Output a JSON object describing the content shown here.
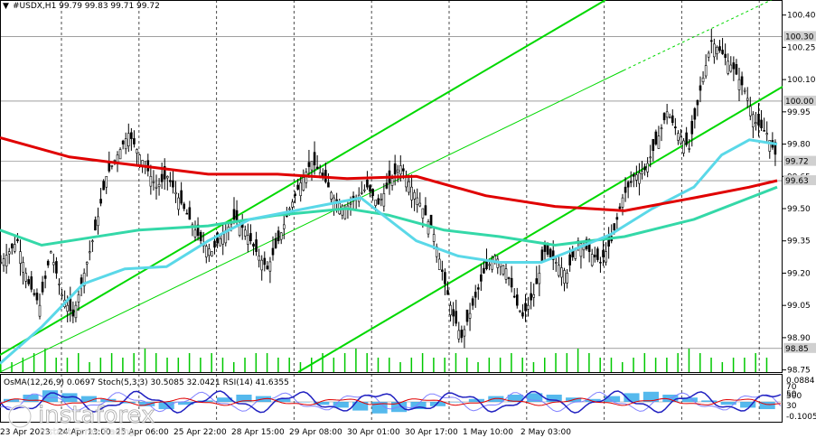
{
  "header": {
    "symbol_line": "#USDX,H1  99.79 99.83 99.71 99.72"
  },
  "indicator_header": {
    "text": "OsMA(12,26,9) 0.0697  Stoch(5,3,3) 30.5085 32.0421  RSI(14) 41.6355"
  },
  "watermark": {
    "brand": "instaforex",
    "tagline": "Instant Forex Trading"
  },
  "colors": {
    "background": "#ffffff",
    "candles": "#000000",
    "grid": "#000000",
    "ma_red": "#e00000",
    "ma_aqua": "#5ad8e8",
    "ma_teal": "#34d8a8",
    "channel": "#00d800",
    "volume": "#00c800",
    "osma_hist": "#2aa8e8",
    "stoch_main": "#2020c0",
    "stoch_signal": "#8080ff",
    "rsi": "#e00000"
  },
  "chart_data": {
    "type": "candlestick",
    "timeframe": "H1",
    "ylim": [
      98.74,
      100.47
    ],
    "y_ticks": [
      "100.40",
      "100.25",
      "100.10",
      "99.95",
      "99.80",
      "99.65",
      "99.50",
      "99.35",
      "99.20",
      "99.05",
      "98.90",
      "98.75"
    ],
    "x_ticks": [
      "23 Apr 2023",
      "24 Apr 13:00",
      "25 Apr 06:00",
      "25 Apr 22:00",
      "28 Apr 15:00",
      "29 Apr 08:00",
      "30 Apr 01:00",
      "30 Apr 17:00",
      "1 May 10:00",
      "2 May 03:00"
    ],
    "horizontal_levels": [
      {
        "price": 100.3,
        "label": "100.30"
      },
      {
        "price": 100.0,
        "label": "100.00"
      },
      {
        "price": 99.72,
        "label": "99.72"
      },
      {
        "price": 99.63,
        "label": "99.63"
      },
      {
        "price": 98.85,
        "label": "98.85"
      }
    ],
    "last_close": 99.72,
    "close_path": [
      [
        0,
        99.25
      ],
      [
        6,
        99.35
      ],
      [
        10,
        99.15
      ],
      [
        14,
        99.05
      ],
      [
        18,
        99.3
      ],
      [
        22,
        99.1
      ],
      [
        26,
        99.0
      ],
      [
        30,
        99.2
      ],
      [
        34,
        99.4
      ],
      [
        38,
        99.65
      ],
      [
        42,
        99.75
      ],
      [
        46,
        99.85
      ],
      [
        48,
        99.8
      ],
      [
        52,
        99.7
      ],
      [
        56,
        99.6
      ],
      [
        60,
        99.65
      ],
      [
        64,
        99.55
      ],
      [
        68,
        99.45
      ],
      [
        72,
        99.35
      ],
      [
        76,
        99.3
      ],
      [
        80,
        99.38
      ],
      [
        84,
        99.45
      ],
      [
        88,
        99.4
      ],
      [
        92,
        99.3
      ],
      [
        96,
        99.22
      ],
      [
        100,
        99.35
      ],
      [
        104,
        99.5
      ],
      [
        108,
        99.62
      ],
      [
        112,
        99.72
      ],
      [
        116,
        99.65
      ],
      [
        120,
        99.55
      ],
      [
        124,
        99.5
      ],
      [
        128,
        99.55
      ],
      [
        132,
        99.6
      ],
      [
        136,
        99.52
      ],
      [
        140,
        99.62
      ],
      [
        144,
        99.7
      ],
      [
        148,
        99.6
      ],
      [
        152,
        99.5
      ],
      [
        156,
        99.38
      ],
      [
        160,
        99.15
      ],
      [
        163,
        99.0
      ],
      [
        166,
        98.9
      ],
      [
        170,
        99.05
      ],
      [
        174,
        99.2
      ],
      [
        178,
        99.28
      ],
      [
        182,
        99.22
      ],
      [
        186,
        99.05
      ],
      [
        188,
        99.0
      ],
      [
        192,
        99.1
      ],
      [
        196,
        99.3
      ],
      [
        200,
        99.25
      ],
      [
        204,
        99.2
      ],
      [
        208,
        99.35
      ],
      [
        212,
        99.3
      ],
      [
        216,
        99.25
      ],
      [
        220,
        99.35
      ],
      [
        224,
        99.55
      ],
      [
        228,
        99.65
      ],
      [
        232,
        99.68
      ],
      [
        236,
        99.8
      ],
      [
        240,
        99.95
      ],
      [
        244,
        99.85
      ],
      [
        248,
        99.78
      ],
      [
        252,
        100.05
      ],
      [
        256,
        100.28
      ],
      [
        260,
        100.22
      ],
      [
        264,
        100.15
      ],
      [
        268,
        100.05
      ],
      [
        272,
        99.9
      ],
      [
        276,
        99.85
      ],
      [
        280,
        99.72
      ]
    ],
    "ma_red_path": [
      [
        0,
        99.83
      ],
      [
        25,
        99.74
      ],
      [
        50,
        99.7
      ],
      [
        75,
        99.66
      ],
      [
        100,
        99.66
      ],
      [
        125,
        99.64
      ],
      [
        150,
        99.65
      ],
      [
        175,
        99.56
      ],
      [
        200,
        99.51
      ],
      [
        225,
        99.49
      ],
      [
        250,
        99.55
      ],
      [
        270,
        99.6
      ],
      [
        280,
        99.63
      ]
    ],
    "ma_aqua_path": [
      [
        0,
        98.78
      ],
      [
        15,
        98.95
      ],
      [
        30,
        99.15
      ],
      [
        45,
        99.22
      ],
      [
        60,
        99.23
      ],
      [
        75,
        99.35
      ],
      [
        90,
        99.45
      ],
      [
        110,
        99.5
      ],
      [
        130,
        99.55
      ],
      [
        135,
        99.5
      ],
      [
        150,
        99.35
      ],
      [
        165,
        99.28
      ],
      [
        180,
        99.25
      ],
      [
        195,
        99.25
      ],
      [
        205,
        99.3
      ],
      [
        220,
        99.38
      ],
      [
        235,
        99.5
      ],
      [
        250,
        99.6
      ],
      [
        260,
        99.75
      ],
      [
        270,
        99.82
      ],
      [
        280,
        99.8
      ]
    ],
    "ma_teal_path": [
      [
        0,
        99.4
      ],
      [
        15,
        99.33
      ],
      [
        30,
        99.36
      ],
      [
        50,
        99.4
      ],
      [
        75,
        99.42
      ],
      [
        100,
        99.47
      ],
      [
        125,
        99.5
      ],
      [
        140,
        99.47
      ],
      [
        160,
        99.4
      ],
      [
        180,
        99.37
      ],
      [
        200,
        99.33
      ],
      [
        225,
        99.37
      ],
      [
        250,
        99.45
      ],
      [
        270,
        99.55
      ],
      [
        280,
        99.6
      ]
    ],
    "volume": [
      1,
      1,
      2,
      3,
      4,
      2,
      2,
      3,
      1,
      2,
      3,
      2,
      3,
      4,
      3,
      2,
      2,
      3,
      2,
      3,
      2,
      1,
      2,
      3,
      3,
      2,
      2,
      1,
      2,
      3,
      2,
      3,
      4,
      3,
      2,
      2,
      1,
      2,
      3,
      2,
      2,
      3,
      2,
      1,
      2,
      2,
      3,
      2,
      1,
      2,
      3,
      3,
      4,
      3,
      2,
      2,
      1,
      2,
      3,
      2,
      2,
      3,
      4,
      3,
      2,
      1,
      2,
      2,
      3,
      2
    ],
    "osma": [
      0.02,
      0.05,
      0.08,
      0.06,
      0.04,
      0.02,
      -0.01,
      -0.03,
      -0.05,
      -0.02,
      0.01,
      0.03,
      0.05,
      0.04,
      0.02,
      0.0,
      -0.02,
      -0.04,
      -0.06,
      -0.08,
      -0.07,
      -0.05,
      -0.03,
      0.0,
      0.02,
      0.04,
      0.05,
      0.06,
      0.05,
      0.03,
      0.02,
      0.04,
      0.06,
      0.07,
      0.05,
      0.03,
      0.01,
      -0.02,
      -0.04,
      -0.05
    ]
  }
}
